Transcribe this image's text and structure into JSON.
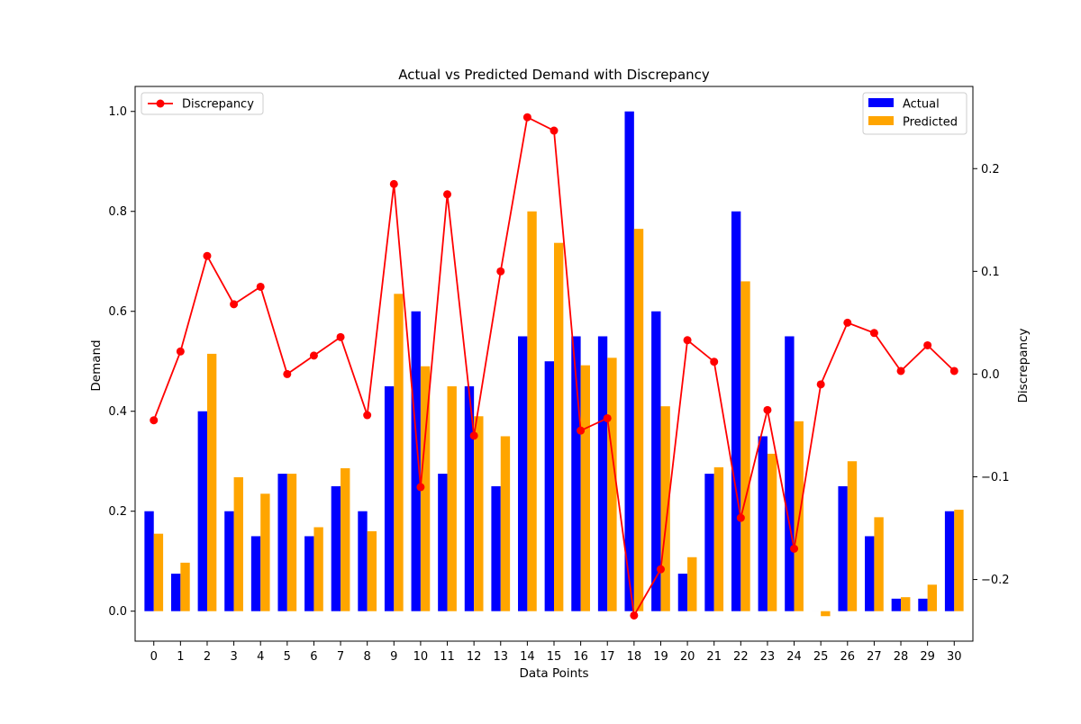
{
  "chart_data": {
    "type": "bar",
    "title": "Actual vs Predicted Demand with Discrepancy",
    "xlabel": "Data Points",
    "ylabel": "Demand",
    "y2label": "Discrepancy",
    "categories": [
      "0",
      "1",
      "2",
      "3",
      "4",
      "5",
      "6",
      "7",
      "8",
      "9",
      "10",
      "11",
      "12",
      "13",
      "14",
      "15",
      "16",
      "17",
      "18",
      "19",
      "20",
      "21",
      "22",
      "23",
      "24",
      "25",
      "26",
      "27",
      "28",
      "29",
      "30"
    ],
    "ylim": [
      -0.06,
      1.05
    ],
    "y2lim": [
      -0.26,
      0.28
    ],
    "yticks": [
      "0.0",
      "0.2",
      "0.4",
      "0.6",
      "0.8",
      "1.0"
    ],
    "y2ticks": [
      "−0.2",
      "−0.1",
      "0.0",
      "0.1",
      "0.2"
    ],
    "grid": false,
    "series": [
      {
        "name": "Actual",
        "color": "#0000ff",
        "kind": "bar",
        "values": [
          0.2,
          0.075,
          0.4,
          0.2,
          0.15,
          0.275,
          0.15,
          0.25,
          0.2,
          0.45,
          0.6,
          0.275,
          0.45,
          0.25,
          0.55,
          0.5,
          0.55,
          0.55,
          1.0,
          0.6,
          0.075,
          0.275,
          0.8,
          0.35,
          0.55,
          0.0,
          0.25,
          0.15,
          0.025,
          0.025,
          0.2
        ]
      },
      {
        "name": "Predicted",
        "color": "#ffa500",
        "kind": "bar",
        "values": [
          0.155,
          0.097,
          0.515,
          0.268,
          0.235,
          0.275,
          0.168,
          0.286,
          0.16,
          0.635,
          0.49,
          0.45,
          0.39,
          0.35,
          0.8,
          0.737,
          0.492,
          0.507,
          0.765,
          0.41,
          0.108,
          0.288,
          0.66,
          0.315,
          0.38,
          -0.01,
          0.3,
          0.188,
          0.028,
          0.053,
          0.203
        ]
      },
      {
        "name": "Discrepancy",
        "color": "#ff0000",
        "kind": "line",
        "axis": "right",
        "values": [
          -0.045,
          0.022,
          0.115,
          0.068,
          0.085,
          0.0,
          0.018,
          0.036,
          -0.04,
          0.185,
          -0.11,
          0.175,
          -0.06,
          0.1,
          0.25,
          0.237,
          -0.055,
          -0.043,
          -0.235,
          -0.19,
          0.033,
          0.012,
          -0.14,
          -0.035,
          -0.17,
          -0.01,
          0.05,
          0.04,
          0.003,
          0.028,
          0.003
        ]
      }
    ],
    "legends": [
      {
        "position": "upper-left",
        "entries": [
          "Discrepancy"
        ]
      },
      {
        "position": "upper-right",
        "entries": [
          "Actual",
          "Predicted"
        ]
      }
    ]
  }
}
